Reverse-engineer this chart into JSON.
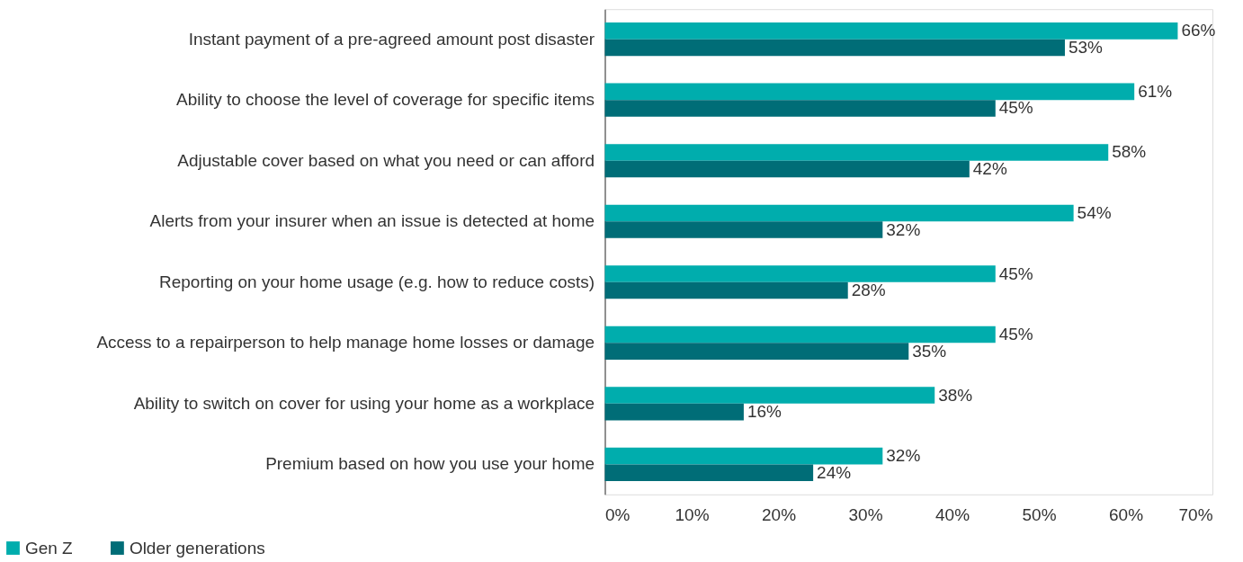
{
  "chart_data": {
    "type": "bar",
    "orientation": "horizontal",
    "categories": [
      "Instant payment of a pre-agreed amount post disaster",
      "Ability to choose the level of coverage for specific items",
      "Adjustable cover based on what you need or can afford",
      "Alerts from your insurer when an issue is detected at home",
      "Reporting on your home usage (e.g. how to reduce costs)",
      "Access to a repairperson to help manage home losses or damage",
      "Ability to switch on cover for using your home as a workplace",
      "Premium based on how you use your home"
    ],
    "series": [
      {
        "name": "Gen Z",
        "color": "#00adad",
        "values": [
          66,
          61,
          58,
          54,
          45,
          45,
          38,
          32
        ],
        "value_labels": [
          "66%",
          "61%",
          "58%",
          "54%",
          "45%",
          "45%",
          "38%",
          "32%"
        ]
      },
      {
        "name": "Older generations",
        "color": "#006d77",
        "values": [
          53,
          45,
          42,
          32,
          28,
          35,
          16,
          24
        ],
        "value_labels": [
          "53%",
          "45%",
          "42%",
          "32%",
          "28%",
          "35%",
          "16%",
          "24%"
        ]
      }
    ],
    "xlim": [
      0,
      70
    ],
    "xticks": [
      {
        "value": 0,
        "label": "0%"
      },
      {
        "value": 10,
        "label": "10%"
      },
      {
        "value": 20,
        "label": "20%"
      },
      {
        "value": 30,
        "label": "30%"
      },
      {
        "value": 40,
        "label": "40%"
      },
      {
        "value": 50,
        "label": "50%"
      },
      {
        "value": 60,
        "label": "60%"
      },
      {
        "value": 70,
        "label": "70%"
      }
    ],
    "legend": "bottom left"
  }
}
